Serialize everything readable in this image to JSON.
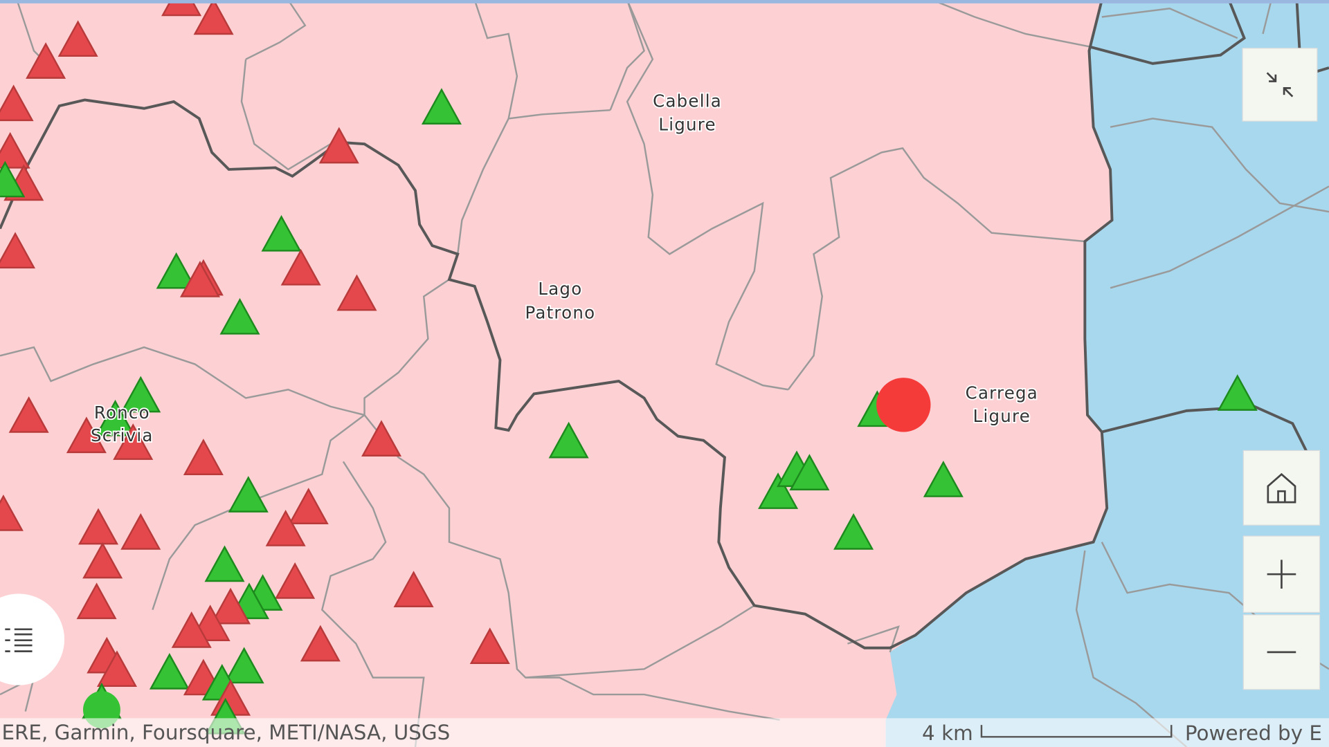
{
  "places": [
    {
      "lines": [
        "Cabella",
        "Ligure"
      ]
    },
    {
      "lines": [
        "Lago",
        "Patrono"
      ]
    },
    {
      "lines": [
        "Carrega",
        "Ligure"
      ]
    },
    {
      "lines": [
        "Ronco",
        "Scrivia"
      ]
    }
  ],
  "attribution": "ERE, Garmin, Foursquare, METI/NASA, USGS",
  "scale": "4 km",
  "powered_by": "Powered by E"
}
